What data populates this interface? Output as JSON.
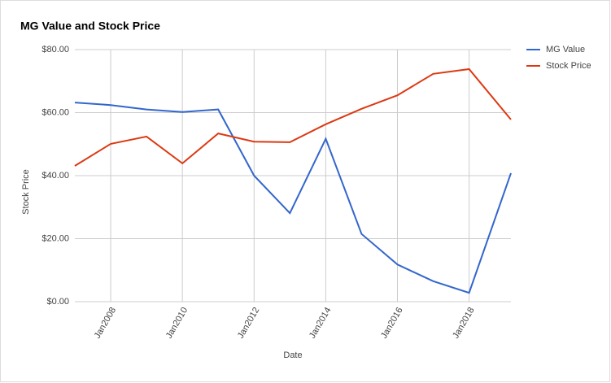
{
  "chart_data": {
    "type": "line",
    "title": "MG Value and Stock Price",
    "x_label": "Date",
    "y_label": "Stock Price",
    "x": [
      "2007-01",
      "2008-01",
      "2009-01",
      "2010-01",
      "2011-01",
      "2012-01",
      "2013-01",
      "2014-01",
      "2015-01",
      "2016-01",
      "2017-01",
      "2018-01",
      "2019-03"
    ],
    "series": [
      {
        "name": "MG Value",
        "color": "#3366cc",
        "values": [
          63.2,
          62.4,
          61.0,
          60.2,
          61.0,
          40.0,
          28.1,
          51.7,
          21.5,
          11.8,
          6.5,
          2.8,
          40.8
        ]
      },
      {
        "name": "Stock Price",
        "color": "#dc3912",
        "values": [
          43.1,
          50.1,
          52.4,
          43.9,
          53.4,
          50.8,
          50.6,
          56.3,
          61.2,
          65.5,
          72.3,
          73.8,
          57.8
        ]
      }
    ],
    "xlim": [
      "2007-01",
      "2019-03"
    ],
    "xticks": [
      {
        "value": "2008-01",
        "label": "Jan2008"
      },
      {
        "value": "2010-01",
        "label": "Jan2010"
      },
      {
        "value": "2012-01",
        "label": "Jan2012"
      },
      {
        "value": "2014-01",
        "label": "Jan2014"
      },
      {
        "value": "2016-01",
        "label": "Jan2016"
      },
      {
        "value": "2018-01",
        "label": "Jan2018"
      }
    ],
    "ylim": [
      0,
      80
    ],
    "yticks": [
      {
        "value": 0,
        "label": "$0.00"
      },
      {
        "value": 20,
        "label": "$20.00"
      },
      {
        "value": 40,
        "label": "$40.00"
      },
      {
        "value": 60,
        "label": "$60.00"
      },
      {
        "value": 80,
        "label": "$80.00"
      }
    ],
    "grid": true,
    "legend": "right"
  }
}
